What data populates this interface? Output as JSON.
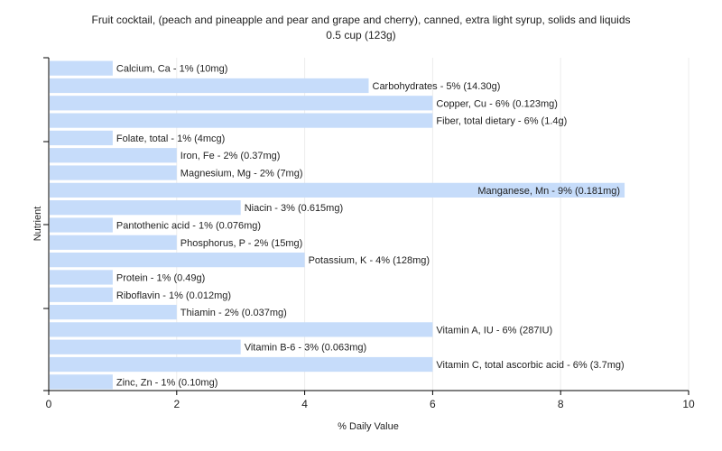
{
  "chart_data": {
    "type": "bar",
    "orientation": "horizontal",
    "title": "Fruit cocktail, (peach and pineapple and pear and grape and cherry), canned, extra light syrup, solids and liquids",
    "subtitle": "0.5 cup (123g)",
    "xlabel": "% Daily Value",
    "ylabel": "Nutrient",
    "xlim": [
      0,
      10
    ],
    "xticks": [
      0,
      2,
      4,
      6,
      8,
      10
    ],
    "grid": true,
    "bar_color": "#c6dcfa",
    "categories": [
      "Calcium, Ca",
      "Carbohydrates",
      "Copper, Cu",
      "Fiber, total dietary",
      "Folate, total",
      "Iron, Fe",
      "Magnesium, Mg",
      "Manganese, Mn",
      "Niacin",
      "Pantothenic acid",
      "Phosphorus, P",
      "Potassium, K",
      "Protein",
      "Riboflavin",
      "Thiamin",
      "Vitamin A, IU",
      "Vitamin B-6",
      "Vitamin C, total ascorbic acid",
      "Zinc, Zn"
    ],
    "values": [
      1,
      5,
      6,
      6,
      1,
      2,
      2,
      9,
      3,
      1,
      2,
      4,
      1,
      1,
      2,
      6,
      3,
      6,
      1
    ],
    "labels": [
      "Calcium, Ca - 1% (10mg)",
      "Carbohydrates - 5% (14.30g)",
      "Copper, Cu - 6% (0.123mg)",
      "Fiber, total dietary - 6% (1.4g)",
      "Folate, total - 1% (4mcg)",
      "Iron, Fe - 2% (0.37mg)",
      "Magnesium, Mg - 2% (7mg)",
      "Manganese, Mn - 9% (0.181mg)",
      "Niacin - 3% (0.615mg)",
      "Pantothenic acid - 1% (0.076mg)",
      "Phosphorus, P - 2% (15mg)",
      "Potassium, K - 4% (128mg)",
      "Protein - 1% (0.49g)",
      "Riboflavin - 1% (0.012mg)",
      "Thiamin - 2% (0.037mg)",
      "Vitamin A, IU - 6% (287IU)",
      "Vitamin B-6 - 3% (0.063mg)",
      "Vitamin C, total ascorbic acid - 6% (3.7mg)",
      "Zinc, Zn - 1% (0.10mg)"
    ]
  }
}
